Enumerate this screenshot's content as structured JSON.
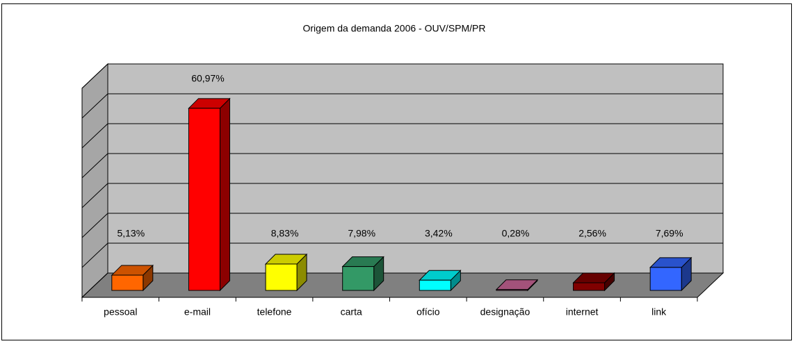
{
  "chart_data": {
    "type": "bar3d",
    "title": "Origem da demanda 2006 - OUV/SPM/PR",
    "categories": [
      "pessoal",
      "e-mail",
      "telefone",
      "carta",
      "ofício",
      "designação",
      "internet",
      "link"
    ],
    "values": [
      5.13,
      60.97,
      8.83,
      7.98,
      3.42,
      0.28,
      2.56,
      7.69
    ],
    "value_labels": [
      "5,13%",
      "60,97%",
      "8,83%",
      "7,98%",
      "3,42%",
      "0,28%",
      "2,56%",
      "7,69%"
    ],
    "colors": [
      "#ff6600",
      "#ff0000",
      "#ffff00",
      "#339966",
      "#00ffff",
      "#cc6699",
      "#800000",
      "#3366ff"
    ],
    "ylim": [
      0,
      70
    ],
    "yticks": [
      0,
      10,
      20,
      30,
      40,
      50,
      60,
      70
    ],
    "grid": true
  }
}
